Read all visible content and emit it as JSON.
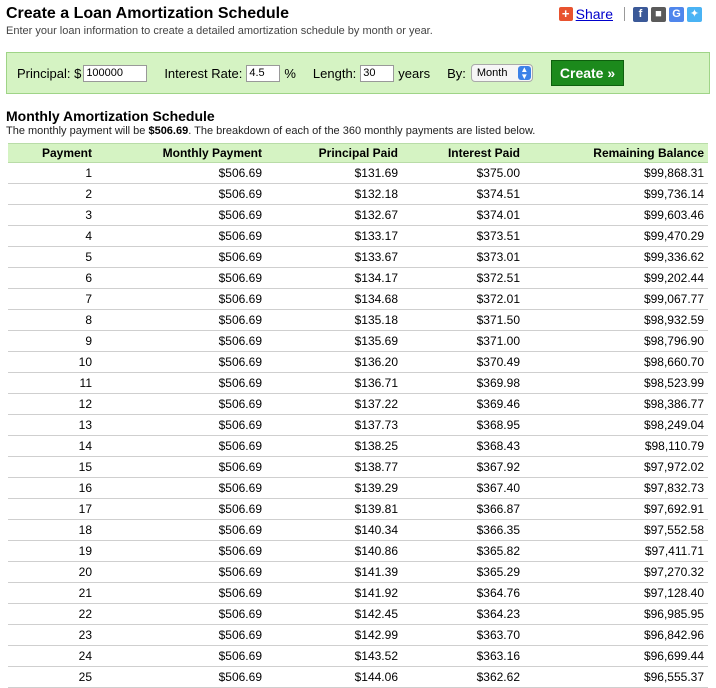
{
  "header": {
    "title": "Create a Loan Amortization Schedule",
    "subtitle": "Enter your loan information to create a detailed amortization schedule by month or year."
  },
  "share": {
    "plus": "+",
    "label": "Share",
    "icons": [
      "facebook-icon",
      "myspace-icon",
      "google-icon",
      "twitter-icon"
    ]
  },
  "form": {
    "principal_label": "Principal: $",
    "principal_value": "100000",
    "rate_label": "Interest Rate:",
    "rate_value": "4.5",
    "rate_unit": "%",
    "length_label": "Length:",
    "length_value": "30",
    "length_unit": "years",
    "by_label": "By:",
    "by_value": "Month",
    "create_label": "Create »"
  },
  "schedule": {
    "title": "Monthly Amortization Schedule",
    "desc_prefix": "The monthly payment will be ",
    "monthly_payment": "$506.69",
    "desc_suffix": ". The breakdown of each of the 360 monthly payments are listed below.",
    "columns": [
      "Payment",
      "Monthly Payment",
      "Principal Paid",
      "Interest Paid",
      "Remaining Balance"
    ],
    "rows": [
      [
        "1",
        "$506.69",
        "$131.69",
        "$375.00",
        "$99,868.31"
      ],
      [
        "2",
        "$506.69",
        "$132.18",
        "$374.51",
        "$99,736.14"
      ],
      [
        "3",
        "$506.69",
        "$132.67",
        "$374.01",
        "$99,603.46"
      ],
      [
        "4",
        "$506.69",
        "$133.17",
        "$373.51",
        "$99,470.29"
      ],
      [
        "5",
        "$506.69",
        "$133.67",
        "$373.01",
        "$99,336.62"
      ],
      [
        "6",
        "$506.69",
        "$134.17",
        "$372.51",
        "$99,202.44"
      ],
      [
        "7",
        "$506.69",
        "$134.68",
        "$372.01",
        "$99,067.77"
      ],
      [
        "8",
        "$506.69",
        "$135.18",
        "$371.50",
        "$98,932.59"
      ],
      [
        "9",
        "$506.69",
        "$135.69",
        "$371.00",
        "$98,796.90"
      ],
      [
        "10",
        "$506.69",
        "$136.20",
        "$370.49",
        "$98,660.70"
      ],
      [
        "11",
        "$506.69",
        "$136.71",
        "$369.98",
        "$98,523.99"
      ],
      [
        "12",
        "$506.69",
        "$137.22",
        "$369.46",
        "$98,386.77"
      ],
      [
        "13",
        "$506.69",
        "$137.73",
        "$368.95",
        "$98,249.04"
      ],
      [
        "14",
        "$506.69",
        "$138.25",
        "$368.43",
        "$98,110.79"
      ],
      [
        "15",
        "$506.69",
        "$138.77",
        "$367.92",
        "$97,972.02"
      ],
      [
        "16",
        "$506.69",
        "$139.29",
        "$367.40",
        "$97,832.73"
      ],
      [
        "17",
        "$506.69",
        "$139.81",
        "$366.87",
        "$97,692.91"
      ],
      [
        "18",
        "$506.69",
        "$140.34",
        "$366.35",
        "$97,552.58"
      ],
      [
        "19",
        "$506.69",
        "$140.86",
        "$365.82",
        "$97,411.71"
      ],
      [
        "20",
        "$506.69",
        "$141.39",
        "$365.29",
        "$97,270.32"
      ],
      [
        "21",
        "$506.69",
        "$141.92",
        "$364.76",
        "$97,128.40"
      ],
      [
        "22",
        "$506.69",
        "$142.45",
        "$364.23",
        "$96,985.95"
      ],
      [
        "23",
        "$506.69",
        "$142.99",
        "$363.70",
        "$96,842.96"
      ],
      [
        "24",
        "$506.69",
        "$143.52",
        "$363.16",
        "$96,699.44"
      ],
      [
        "25",
        "$506.69",
        "$144.06",
        "$362.62",
        "$96,555.37"
      ]
    ]
  }
}
